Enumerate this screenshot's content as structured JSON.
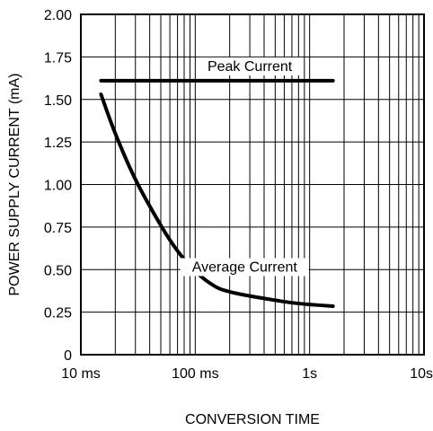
{
  "chart_data": {
    "type": "line",
    "title": "",
    "xlabel": "CONVERSION TIME",
    "ylabel": "POWER SUPPLY CURRENT (mA)",
    "x_scale": "log",
    "x_unit": "s",
    "xlim": [
      0.01,
      10
    ],
    "ylim": [
      0,
      2.0
    ],
    "x_ticks": [
      {
        "value": 0.01,
        "label": "10 ms"
      },
      {
        "value": 0.1,
        "label": "100 ms"
      },
      {
        "value": 1,
        "label": "1s"
      },
      {
        "value": 10,
        "label": "10s"
      }
    ],
    "y_ticks": [
      {
        "value": 0,
        "label": "0"
      },
      {
        "value": 0.25,
        "label": "0.25"
      },
      {
        "value": 0.5,
        "label": "0.50"
      },
      {
        "value": 0.75,
        "label": "0.75"
      },
      {
        "value": 1.0,
        "label": "1.00"
      },
      {
        "value": 1.25,
        "label": "1.25"
      },
      {
        "value": 1.5,
        "label": "1.50"
      },
      {
        "value": 1.75,
        "label": "1.75"
      },
      {
        "value": 2.0,
        "label": "2.00"
      }
    ],
    "grid": true,
    "series": [
      {
        "name": "Peak Current",
        "x": [
          0.015,
          1.6
        ],
        "y": [
          1.61,
          1.61
        ]
      },
      {
        "name": "Average Current",
        "x": [
          0.015,
          0.02,
          0.03,
          0.05,
          0.07,
          0.1,
          0.15,
          0.2,
          0.3,
          0.5,
          0.7,
          1.0,
          1.6
        ],
        "y": [
          1.53,
          1.3,
          1.03,
          0.76,
          0.61,
          0.49,
          0.4,
          0.37,
          0.345,
          0.32,
          0.305,
          0.295,
          0.285
        ]
      }
    ],
    "annotations": [
      {
        "text": "Peak Current",
        "series": "Peak Current"
      },
      {
        "text": "Average Current",
        "series": "Average Current"
      }
    ]
  }
}
